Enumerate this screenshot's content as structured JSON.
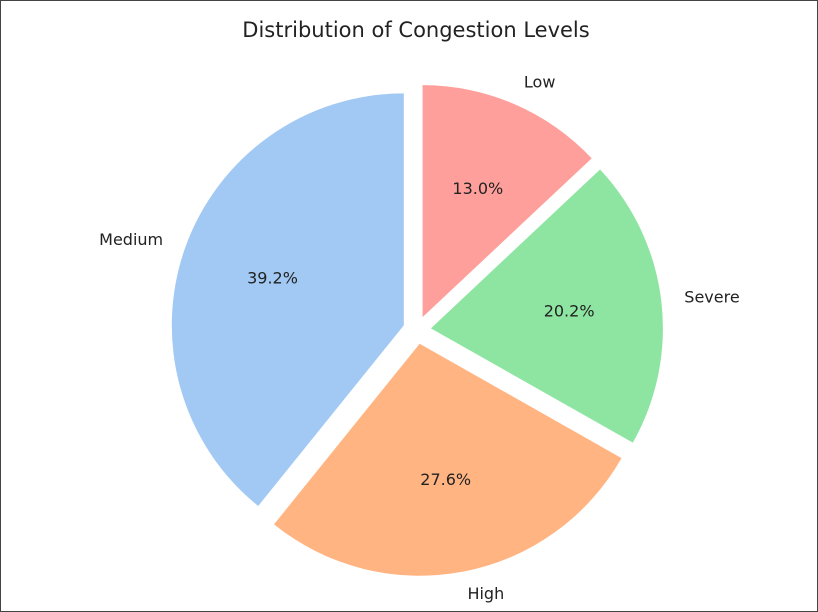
{
  "chart_data": {
    "type": "pie",
    "title": "Distribution of Congestion Levels",
    "categories": [
      "Medium",
      "High",
      "Severe",
      "Low"
    ],
    "values": [
      39.2,
      27.6,
      20.2,
      13.0
    ],
    "value_labels": [
      "39.2%",
      "27.6%",
      "20.2%",
      "13.0%"
    ],
    "colors": [
      "#a1c9f4",
      "#ffb482",
      "#8de5a1",
      "#ff9f9b"
    ]
  }
}
